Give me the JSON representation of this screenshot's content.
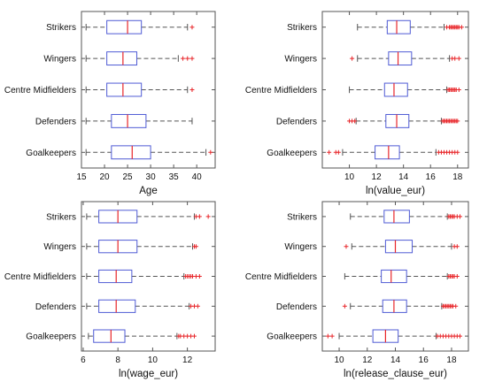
{
  "chart_data": [
    {
      "type": "boxplot",
      "xlabel": "Age",
      "xlim": [
        15,
        44
      ],
      "xticks": [
        15,
        20,
        25,
        30,
        35,
        40
      ],
      "categories": [
        "Strikers",
        "Wingers",
        "Centre Midfielders",
        "Defenders",
        "Goalkeepers"
      ],
      "boxes": [
        {
          "category": "Strikers",
          "whisker_low": 16,
          "q1": 20.5,
          "median": 25,
          "q3": 28,
          "whisker_high": 38,
          "outliers": [
            39
          ]
        },
        {
          "category": "Wingers",
          "whisker_low": 16,
          "q1": 20.5,
          "median": 24,
          "q3": 27,
          "whisker_high": 36,
          "outliers": [
            37,
            38,
            39
          ]
        },
        {
          "category": "Centre Midfielders",
          "whisker_low": 16,
          "q1": 20.5,
          "median": 24,
          "q3": 28,
          "whisker_high": 38,
          "outliers": [
            39
          ]
        },
        {
          "category": "Defenders",
          "whisker_low": 16,
          "q1": 21.5,
          "median": 25,
          "q3": 29,
          "whisker_high": 39,
          "outliers": []
        },
        {
          "category": "Goalkeepers",
          "whisker_low": 16,
          "q1": 21.5,
          "median": 26,
          "q3": 30,
          "whisker_high": 42,
          "outliers": [
            43
          ]
        }
      ]
    },
    {
      "type": "boxplot",
      "xlabel": "ln(value_eur)",
      "xlim": [
        8,
        18.8
      ],
      "xticks": [
        10,
        12,
        14,
        16,
        18
      ],
      "categories": [
        "Strikers",
        "Wingers",
        "Centre Midfielders",
        "Defenders",
        "Goalkeepers"
      ],
      "boxes": [
        {
          "category": "Strikers",
          "whisker_low": 10.6,
          "q1": 12.8,
          "median": 13.5,
          "q3": 14.5,
          "whisker_high": 17.0,
          "outliers": [
            17.2,
            17.4,
            17.5,
            17.6,
            17.7,
            17.8,
            17.9,
            18.0,
            18.1,
            18.3
          ]
        },
        {
          "category": "Wingers",
          "whisker_low": 10.6,
          "q1": 12.9,
          "median": 13.6,
          "q3": 14.6,
          "whisker_high": 17.4,
          "outliers": [
            10.2,
            17.6,
            17.8,
            18.1
          ]
        },
        {
          "category": "Centre Midfielders",
          "whisker_low": 10.0,
          "q1": 12.6,
          "median": 13.3,
          "q3": 14.3,
          "whisker_high": 17.2,
          "outliers": [
            17.3,
            17.4,
            17.5,
            17.6,
            17.7,
            17.8,
            17.9,
            18.1
          ]
        },
        {
          "category": "Defenders",
          "whisker_low": 10.5,
          "q1": 12.7,
          "median": 13.5,
          "q3": 14.4,
          "whisker_high": 16.8,
          "outliers": [
            10.0,
            10.2,
            10.4,
            16.9,
            17.0,
            17.1,
            17.2,
            17.3,
            17.4,
            17.5,
            17.6,
            17.7,
            17.8,
            17.9,
            18.0
          ]
        },
        {
          "category": "Goalkeepers",
          "whisker_low": 9.5,
          "q1": 11.9,
          "median": 12.9,
          "q3": 13.7,
          "whisker_high": 16.4,
          "outliers": [
            8.5,
            9.0,
            9.2,
            16.6,
            16.8,
            17.0,
            17.2,
            17.4,
            17.6,
            17.8,
            18.0
          ]
        }
      ]
    },
    {
      "type": "boxplot",
      "xlabel": "ln(wage_eur)",
      "xlim": [
        5.9,
        13.6
      ],
      "xticks": [
        6,
        8,
        10,
        12
      ],
      "categories": [
        "Strikers",
        "Wingers",
        "Centre Midfielders",
        "Defenders",
        "Goalkeepers"
      ],
      "boxes": [
        {
          "category": "Strikers",
          "whisker_low": 6.2,
          "q1": 6.9,
          "median": 8.0,
          "q3": 9.1,
          "whisker_high": 12.4,
          "outliers": [
            12.5,
            12.7,
            13.2
          ]
        },
        {
          "category": "Wingers",
          "whisker_low": 6.2,
          "q1": 6.9,
          "median": 8.0,
          "q3": 9.1,
          "whisker_high": 12.3,
          "outliers": [
            12.4,
            12.5
          ]
        },
        {
          "category": "Centre Midfielders",
          "whisker_low": 6.2,
          "q1": 6.9,
          "median": 7.9,
          "q3": 8.8,
          "whisker_high": 11.8,
          "outliers": [
            11.9,
            12.0,
            12.1,
            12.2,
            12.3,
            12.5,
            12.7
          ]
        },
        {
          "category": "Defenders",
          "whisker_low": 6.2,
          "q1": 6.9,
          "median": 7.9,
          "q3": 9.0,
          "whisker_high": 12.1,
          "outliers": [
            12.2,
            12.4,
            12.6
          ]
        },
        {
          "category": "Goalkeepers",
          "whisker_low": 6.3,
          "q1": 6.6,
          "median": 7.6,
          "q3": 8.4,
          "whisker_high": 11.4,
          "outliers": [
            11.5,
            11.6,
            11.8,
            12.0,
            12.2,
            12.4
          ]
        }
      ]
    },
    {
      "type": "boxplot",
      "xlabel": "ln(release_clause_eur)",
      "xlim": [
        8.8,
        19.2
      ],
      "xticks": [
        10,
        12,
        14,
        16,
        18
      ],
      "categories": [
        "Strikers",
        "Wingers",
        "Centre Midfielders",
        "Defenders",
        "Goalkeepers"
      ],
      "boxes": [
        {
          "category": "Strikers",
          "whisker_low": 10.8,
          "q1": 13.2,
          "median": 13.9,
          "q3": 15.0,
          "whisker_high": 17.7,
          "outliers": [
            17.8,
            17.9,
            18.0,
            18.1,
            18.2,
            18.4,
            18.6
          ]
        },
        {
          "category": "Wingers",
          "whisker_low": 10.9,
          "q1": 13.3,
          "median": 14.0,
          "q3": 15.2,
          "whisker_high": 18.0,
          "outliers": [
            10.5,
            18.2,
            18.4
          ]
        },
        {
          "category": "Centre Midfielders",
          "whisker_low": 10.4,
          "q1": 13.0,
          "median": 13.7,
          "q3": 14.8,
          "whisker_high": 17.7,
          "outliers": [
            17.8,
            17.9,
            18.0,
            18.1,
            18.2,
            18.4
          ]
        },
        {
          "category": "Defenders",
          "whisker_low": 10.8,
          "q1": 13.1,
          "median": 13.9,
          "q3": 14.8,
          "whisker_high": 17.3,
          "outliers": [
            10.4,
            17.4,
            17.5,
            17.6,
            17.7,
            17.8,
            17.9,
            18.0,
            18.1,
            18.3
          ]
        },
        {
          "category": "Goalkeepers",
          "whisker_low": 10.0,
          "q1": 12.4,
          "median": 13.3,
          "q3": 14.2,
          "whisker_high": 16.9,
          "outliers": [
            9.2,
            9.5,
            17.0,
            17.2,
            17.4,
            17.6,
            17.8,
            18.0,
            18.2,
            18.4,
            18.6
          ]
        }
      ]
    }
  ],
  "style": {
    "box_color": "#4f5bd5",
    "median_color": "#e8262a",
    "whisker_color": "#555555",
    "outlier_color": "#e8262a",
    "frame_color": "#555555"
  }
}
